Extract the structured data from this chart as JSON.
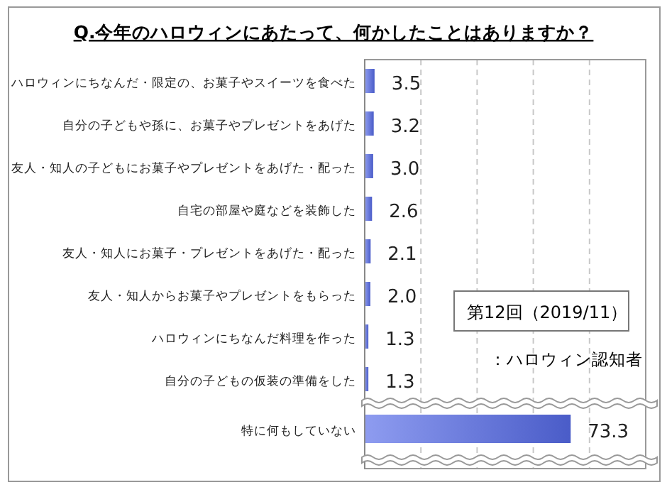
{
  "chart_data": {
    "type": "bar",
    "orientation": "horizontal",
    "title": "Q.今年のハロウィンにあたって、何かしたことはありますか？",
    "categories": [
      "ハロウィンにちなんだ・限定の、お菓子やスイーツを食べた",
      "自分の子どもや孫に、お菓子やプレゼントをあげた",
      "友人・知人の子どもにお菓子やプレゼントをあげた・配った",
      "自宅の部屋や庭などを装飾した",
      "友人・知人にお菓子・プレゼントをあげた・配った",
      "友人・知人からお菓子やプレゼントをもらった",
      "ハロウィンにちなんだ料理を作った",
      "自分の子どもの仮装の準備をした",
      "特に何もしていない"
    ],
    "values": [
      3.5,
      3.2,
      3.0,
      2.6,
      2.1,
      2.0,
      1.3,
      1.3,
      73.3
    ],
    "color": "#4a5cc8",
    "xlim": [
      0,
      100
    ],
    "xticks": [
      {
        "value": 0,
        "label": null
      },
      {
        "value": 20,
        "label": null
      },
      {
        "value": 40,
        "label": null
      },
      {
        "value": 60,
        "label": null
      },
      {
        "value": 80,
        "label": null
      },
      {
        "value": 100,
        "label": null
      }
    ],
    "tick_labels": "y",
    "grid": "x",
    "value_labels": [
      "3.5",
      "3.2",
      "3.0",
      "2.6",
      "2.1",
      "2.0",
      "1.3",
      "1.3",
      "73.3"
    ],
    "annotations": [
      "第12回（2019/11）",
      "：ハロウィン認知者"
    ]
  }
}
